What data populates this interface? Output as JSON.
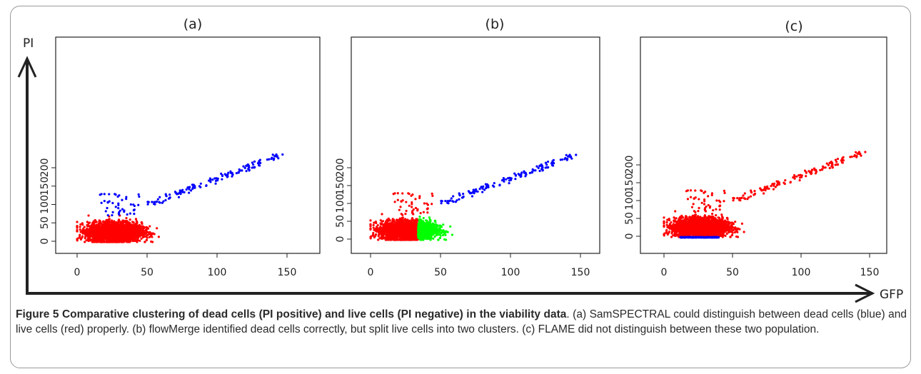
{
  "figure": {
    "axes": {
      "y_title": "PI",
      "x_title": "GFP"
    },
    "colors": {
      "red": "#ff0000",
      "blue": "#0000ff",
      "green": "#00ff00",
      "ink": "#222222",
      "frame": "#9a9a9a"
    }
  },
  "caption": {
    "label": "Figure 5",
    "title": "Comparative clustering of dead cells (PI positive) and live cells (PI negative) in the viability data",
    "text": ". (a) SamSPECTRAL could distinguish between dead cells (blue) and live cells (red) properly. (b) flowMerge identified dead cells correctly, but split live cells into two clusters. (c) FLAME did not distinguish between these two population."
  },
  "chart_data": [
    {
      "type": "scatter",
      "panel_label": "(a)",
      "xlim": [
        0,
        160
      ],
      "ylim": [
        -5,
        238
      ],
      "xticks": [
        "0",
        "50",
        "100",
        "150"
      ],
      "yticks": [
        "0",
        "50",
        "100",
        "150",
        "200"
      ],
      "grid": false,
      "clusters": [
        {
          "color": "red",
          "description": "dense cloud",
          "x_range": [
            0,
            80
          ],
          "y_range": [
            -2,
            70
          ]
        },
        {
          "color": "blue",
          "description": "diagonal band",
          "x_range": [
            15,
            147
          ],
          "y_range": [
            75,
            236
          ]
        }
      ]
    },
    {
      "type": "scatter",
      "panel_label": "(b)",
      "xlim": [
        0,
        160
      ],
      "ylim": [
        -5,
        238
      ],
      "xticks": [
        "0",
        "50",
        "100",
        "150"
      ],
      "yticks": [
        "0",
        "50",
        "100",
        "150",
        "200"
      ],
      "grid": false,
      "clusters": [
        {
          "color": "red",
          "description": "left part of dense cloud",
          "x_range": [
            0,
            35
          ],
          "y_range": [
            -2,
            135
          ]
        },
        {
          "color": "green",
          "description": "right part of dense cloud",
          "x_range": [
            33,
            80
          ],
          "y_range": [
            -2,
            75
          ]
        },
        {
          "color": "blue",
          "description": "diagonal band",
          "x_range": [
            50,
            147
          ],
          "y_range": [
            105,
            236
          ]
        }
      ]
    },
    {
      "type": "scatter",
      "panel_label": "(c)",
      "xlim": [
        0,
        160
      ],
      "ylim": [
        -5,
        238
      ],
      "xticks": [
        "0",
        "50",
        "100",
        "150"
      ],
      "yticks": [
        "0",
        "50",
        "100",
        "150",
        "200"
      ],
      "grid": false,
      "clusters": [
        {
          "color": "red",
          "description": "dense cloud and diagonal band",
          "x_range": [
            0,
            147
          ],
          "y_range": [
            0,
            236
          ]
        },
        {
          "color": "blue",
          "description": "thin line at PI ≈ -3",
          "x_range": [
            10,
            40
          ],
          "y_range": [
            -4,
            -2
          ]
        }
      ]
    }
  ]
}
